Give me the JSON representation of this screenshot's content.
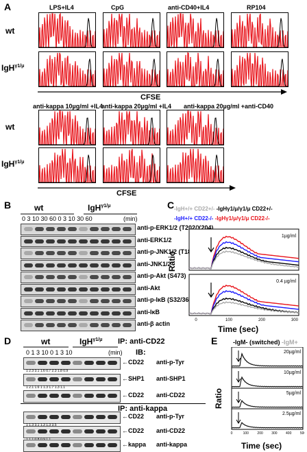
{
  "panelA": {
    "letter": "A",
    "top_conditions": [
      "LPS+IL4",
      "CpG",
      "anti-CD40+IL4",
      "RP104"
    ],
    "bottom_conditions": [
      "anti-kappa 10µg/ml +IL4",
      "anti-kappa 20µg/ml +IL4",
      "anti-kappa 20µg/ml +anti-CD40"
    ],
    "row_wt": "wt",
    "row_igh": "IgH",
    "row_igh_sup": "γ1/μ",
    "xaxis": "CFSE"
  },
  "panelB": {
    "letter": "B",
    "group_wt": "wt",
    "group_igh": "IgH",
    "group_igh_sup": "γ1/μ",
    "timepoints": "0 3 10 30 60  0 3 10 30 60",
    "unit": "(min)",
    "rows": [
      "anti-p-ERK1/2 (T202/Y204)",
      "anti-ERK1/2",
      "anti-p-JNK1/2 (T183/Y185)",
      "anti-JNK1/2",
      "anti-p-Akt (S473)",
      "anti-Akt",
      "anti-p-IκB (S32/36)",
      "anti-IκB",
      "anti-β actin"
    ]
  },
  "panelC": {
    "letter": "C",
    "legend_line1_a": "-IgH+/+ CD22+/-",
    "legend_line1_b": "-IgHγ1/μ/γ1/μ CD22+/-",
    "legend_line2_a": "-IgH+/+ CD22-/-",
    "legend_line2_b": "-IgHγ1/μ/γ1/μ CD22-/-",
    "conc1": "1µg/ml",
    "conc2": "0.4 µg/ml",
    "ylabel": "Ratio",
    "xlabel": "Time (sec)",
    "xticks": [
      "0",
      "100",
      "200",
      "300"
    ]
  },
  "panelD": {
    "letter": "D",
    "group_wt": "wt",
    "group_igh": "IgH",
    "group_igh_sup": "γ1/μ",
    "ip1": "IP: anti-CD22",
    "ib": "IB:",
    "timepoints": "0  1  3  10   0  1  3  10",
    "unit": "(min)",
    "rows1": [
      {
        "left": "CD22",
        "right": "anti-p-Tyr",
        "nums": "1  2.3  3.1  1.6  0.7  2.3  1.8  0.9"
      },
      {
        "left": "SHP1",
        "right": "anti-SHP1",
        "nums": "1  2.1  1.6  1  1.3  1.7  1.3  1.1"
      },
      {
        "left": "CD22",
        "right": "anti-CD22",
        "nums": ""
      }
    ],
    "ip2": "IP: anti-kappa",
    "rows2": [
      {
        "left": "CD22",
        "right": "anti-p-Tyr",
        "nums": "1  1.3  3.1  1.3  1.3  3.5"
      },
      {
        "left": "CD22",
        "right": "anti-CD22",
        "nums": "1  1.1  0.8  0.9  1.1"
      },
      {
        "left": "kappa",
        "right": "anti-kappa",
        "nums": ""
      }
    ]
  },
  "panelE": {
    "letter": "E",
    "legend_a": "-IgM- (switched)",
    "legend_b": "-IgM+",
    "concs": [
      "20µg/ml",
      "10µg/ml",
      "5µg/ml",
      "2.5µg/ml"
    ],
    "ylabel": "Ratio",
    "xlabel": "Time (sec)",
    "xticks": [
      "0",
      "100",
      "200",
      "300",
      "400",
      "500"
    ]
  },
  "colors": {
    "red": "#e8141b",
    "black": "#000000",
    "blue": "#1a1aff",
    "grey": "#aaaaaa"
  }
}
